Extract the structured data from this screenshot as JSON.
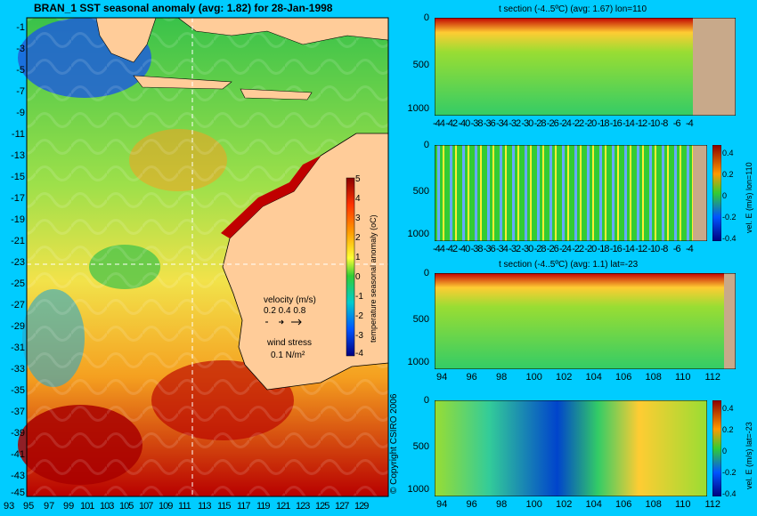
{
  "map": {
    "title": "BRAN_1 SST seasonal anomaly (avg: 1.82) for 28-Jan-1998",
    "lat_labels": [
      "-1",
      "-3",
      "-5",
      "-7",
      "-9",
      "-11",
      "-13",
      "-15",
      "-17",
      "-19",
      "-21",
      "-23",
      "-25",
      "-27",
      "-29",
      "-31",
      "-33",
      "-35",
      "-37",
      "-39",
      "-41",
      "-43",
      "-45"
    ],
    "lon_labels": [
      "93",
      "95",
      "97",
      "99",
      "101",
      "103",
      "105",
      "107",
      "109",
      "111",
      "113",
      "115",
      "117",
      "119",
      "121",
      "123",
      "125",
      "127",
      "129"
    ],
    "colorbar_label": "temperature seasonal anomaly (oC)",
    "colorbar_ticks": [
      "5",
      "4",
      "3",
      "2",
      "1",
      "0",
      "-1",
      "-2",
      "-3",
      "-4"
    ],
    "velocity_label": "velocity (m/s)",
    "velocity_scale": "0.2 0.4 0.8",
    "wind_label": "wind stress",
    "wind_scale": "0.1 N/m²",
    "copyright": "© Copyright CSIRO 2006",
    "crosshair": {
      "lon": 110,
      "lat": -23
    },
    "colors": {
      "ocean_hot": "#b80000",
      "ocean_mid": "#f2e24a",
      "ocean_cool": "#39c24a",
      "land": "#ffcc99",
      "background": "#00ccff"
    }
  },
  "panels": [
    {
      "title": "t section (-4..5ºC) (avg: 1.67) lon=110",
      "y_ticks": [
        "0",
        "500",
        "1000"
      ],
      "x_ticks": [
        "-44",
        "-42",
        "-40",
        "-38",
        "-36",
        "-34",
        "-32",
        "-30",
        "-28",
        "-26",
        "-24",
        "-22",
        "-20",
        "-18",
        "-16",
        "-14",
        "-12",
        "-10",
        "-8",
        "-6",
        "-4"
      ],
      "colorbar": false
    },
    {
      "title": "",
      "y_ticks": [
        "0",
        "500",
        "1000"
      ],
      "x_ticks": [
        "-44",
        "-42",
        "-40",
        "-38",
        "-36",
        "-34",
        "-32",
        "-30",
        "-28",
        "-26",
        "-24",
        "-22",
        "-20",
        "-18",
        "-16",
        "-14",
        "-12",
        "-10",
        "-8",
        "-6",
        "-4"
      ],
      "colorbar": true,
      "colorbar_label": "vel. E (m/s) lon=110",
      "colorbar_ticks": [
        "0.4",
        "0.2",
        "0",
        "-0.2",
        "-0.4"
      ]
    },
    {
      "title": "t section (-4..5ºC) (avg: 1.1) lat=-23",
      "y_ticks": [
        "0",
        "500",
        "1000"
      ],
      "x_ticks": [
        "94",
        "96",
        "98",
        "100",
        "102",
        "104",
        "106",
        "108",
        "110",
        "112"
      ],
      "colorbar": false
    },
    {
      "title": "",
      "y_ticks": [
        "0",
        "500",
        "1000"
      ],
      "x_ticks": [
        "94",
        "96",
        "98",
        "100",
        "102",
        "104",
        "106",
        "108",
        "110",
        "112"
      ],
      "colorbar": true,
      "colorbar_label": "vel. E (m/s) lat=-23",
      "colorbar_ticks": [
        "0.4",
        "0.2",
        "0",
        "-0.2",
        "-0.4"
      ]
    }
  ]
}
